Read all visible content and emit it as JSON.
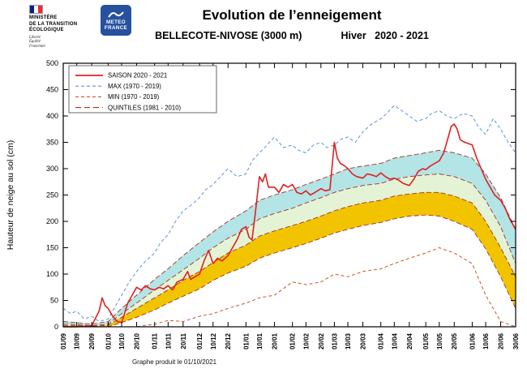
{
  "header": {
    "ministry": {
      "line1": "MINISTÈRE",
      "line2": "DE LA TRANSITION",
      "line3": "ÉCOLOGIQUE",
      "motto1": "Liberté",
      "motto2": "Égalité",
      "motto3": "Fraternité"
    },
    "meteo_france": {
      "line1": "METEO",
      "line2": "FRANCE"
    },
    "title": "Evolution de l’enneigement",
    "subtitle_station": "BELLECOTE-NIVOSE (3000 m)",
    "subtitle_season": "Hiver   2020 - 2021"
  },
  "footer": {
    "caption": "Graphe produit le 01/10/2021"
  },
  "chart_data": {
    "type": "line",
    "title": "Evolution de l’enneigement",
    "subtitle": "BELLECOTE-NIVOSE (3000 m)  Hiver 2020 - 2021",
    "ylabel": "Hauteur de neige au sol (cm)",
    "ylim": [
      0,
      500
    ],
    "ytick_step": 50,
    "grid": false,
    "legend_position": "top-left",
    "x_range_days": [
      0,
      302
    ],
    "x_tick_labels": [
      "01/09",
      "10/09",
      "20/09",
      "01/10",
      "10/10",
      "20/10",
      "01/11",
      "10/11",
      "20/11",
      "01/12",
      "10/12",
      "20/12",
      "01/01",
      "10/01",
      "20/01",
      "01/02",
      "10/02",
      "20/02",
      "01/03",
      "10/03",
      "20/03",
      "01/04",
      "10/04",
      "20/04",
      "01/05",
      "10/05",
      "20/05",
      "01/06",
      "10/06",
      "20/06",
      "30/06"
    ],
    "x_tick_days": [
      0,
      9,
      19,
      30,
      39,
      49,
      61,
      70,
      80,
      91,
      100,
      110,
      122,
      131,
      141,
      153,
      162,
      172,
      181,
      190,
      200,
      212,
      221,
      231,
      242,
      251,
      261,
      273,
      282,
      292,
      302
    ],
    "legend": [
      {
        "key": "saison",
        "label": "SAISON 2020 - 2021",
        "color": "#e02020",
        "style": "solid"
      },
      {
        "key": "max",
        "label": "MAX (1970 - 2019)",
        "color": "#5b93d6",
        "style": "dashed"
      },
      {
        "key": "min",
        "label": "MIN (1970 - 2019)",
        "color": "#cc5522",
        "style": "dashed"
      },
      {
        "key": "quintiles",
        "label": "QUINTILES (1981 - 2010)",
        "color": "#9c3726",
        "style": "longdash"
      }
    ],
    "bands": [
      {
        "name": "quintile-band-q4-q3",
        "color": "#b3e4e6",
        "upper": "q4",
        "lower": "q3"
      },
      {
        "name": "quintile-band-q3-q2",
        "color": "#e4f3d6",
        "upper": "q3",
        "lower": "q2"
      },
      {
        "name": "quintile-band-q2-q1",
        "color": "#f2c400",
        "upper": "q2",
        "lower": "q1"
      }
    ],
    "series": {
      "q4": {
        "x": [
          0,
          9,
          19,
          30,
          39,
          49,
          61,
          70,
          80,
          91,
          100,
          110,
          122,
          131,
          141,
          153,
          162,
          172,
          181,
          190,
          200,
          212,
          221,
          231,
          242,
          251,
          261,
          273,
          282,
          292,
          302
        ],
        "values": [
          10,
          8,
          5,
          10,
          35,
          60,
          90,
          110,
          135,
          160,
          180,
          200,
          220,
          240,
          250,
          260,
          270,
          280,
          290,
          300,
          305,
          310,
          320,
          325,
          330,
          335,
          330,
          320,
          290,
          245,
          185
        ]
      },
      "q3": {
        "x": [
          0,
          9,
          19,
          30,
          39,
          49,
          61,
          70,
          80,
          91,
          100,
          110,
          122,
          131,
          141,
          153,
          162,
          172,
          181,
          190,
          200,
          212,
          221,
          231,
          242,
          251,
          261,
          273,
          282,
          292,
          302
        ],
        "values": [
          5,
          4,
          2,
          5,
          25,
          45,
          70,
          88,
          108,
          130,
          150,
          168,
          185,
          205,
          215,
          225,
          235,
          245,
          255,
          262,
          268,
          272,
          280,
          285,
          288,
          290,
          285,
          272,
          240,
          190,
          120
        ]
      },
      "q2": {
        "x": [
          0,
          9,
          19,
          30,
          39,
          49,
          61,
          70,
          80,
          91,
          100,
          110,
          122,
          131,
          141,
          153,
          162,
          172,
          181,
          190,
          200,
          212,
          221,
          231,
          242,
          251,
          261,
          273,
          282,
          292,
          302
        ],
        "values": [
          2,
          2,
          1,
          3,
          18,
          35,
          55,
          70,
          88,
          105,
          122,
          140,
          155,
          172,
          182,
          192,
          200,
          210,
          220,
          228,
          235,
          240,
          248,
          252,
          255,
          255,
          248,
          235,
          200,
          150,
          95
        ]
      },
      "q1": {
        "x": [
          0,
          9,
          19,
          30,
          39,
          49,
          61,
          70,
          80,
          91,
          100,
          110,
          122,
          131,
          141,
          153,
          162,
          172,
          181,
          190,
          200,
          212,
          221,
          231,
          242,
          251,
          261,
          273,
          282,
          292,
          302
        ],
        "values": [
          0,
          0,
          0,
          0,
          8,
          18,
          32,
          45,
          58,
          72,
          88,
          102,
          115,
          130,
          140,
          150,
          158,
          168,
          178,
          185,
          192,
          198,
          205,
          210,
          212,
          210,
          200,
          185,
          148,
          95,
          35
        ]
      },
      "min": {
        "x": [
          0,
          9,
          19,
          30,
          39,
          49,
          61,
          70,
          80,
          91,
          100,
          110,
          122,
          131,
          141,
          153,
          162,
          172,
          181,
          190,
          200,
          212,
          221,
          231,
          242,
          251,
          261,
          273,
          282,
          292,
          302
        ],
        "values": [
          0,
          0,
          0,
          0,
          0,
          0,
          5,
          12,
          10,
          20,
          25,
          35,
          45,
          55,
          60,
          85,
          80,
          85,
          100,
          95,
          105,
          110,
          120,
          130,
          140,
          150,
          140,
          120,
          60,
          10,
          0
        ]
      },
      "max": {
        "x": [
          0,
          5,
          9,
          14,
          19,
          24,
          30,
          35,
          39,
          44,
          49,
          55,
          61,
          65,
          70,
          75,
          80,
          85,
          91,
          95,
          100,
          105,
          110,
          116,
          122,
          126,
          131,
          136,
          141,
          147,
          153,
          157,
          162,
          167,
          172,
          176,
          181,
          185,
          190,
          195,
          200,
          206,
          212,
          216,
          221,
          226,
          231,
          236,
          242,
          246,
          251,
          256,
          261,
          267,
          273,
          277,
          282,
          287,
          292,
          297,
          302
        ],
        "values": [
          35,
          25,
          30,
          15,
          20,
          10,
          15,
          40,
          60,
          85,
          105,
          125,
          140,
          160,
          175,
          200,
          220,
          230,
          245,
          260,
          270,
          285,
          300,
          285,
          290,
          315,
          330,
          345,
          360,
          340,
          345,
          335,
          330,
          345,
          350,
          340,
          345,
          355,
          360,
          350,
          370,
          385,
          395,
          405,
          420,
          410,
          400,
          390,
          395,
          405,
          410,
          400,
          395,
          405,
          400,
          380,
          365,
          395,
          375,
          350,
          330
        ]
      },
      "saison": {
        "x": [
          0,
          9,
          19,
          24,
          26,
          28,
          30,
          33,
          36,
          39,
          43,
          46,
          49,
          52,
          55,
          58,
          61,
          64,
          67,
          70,
          73,
          76,
          80,
          83,
          85,
          88,
          91,
          94,
          97,
          100,
          103,
          106,
          110,
          113,
          116,
          119,
          122,
          124,
          126,
          128,
          131,
          133,
          135,
          137,
          141,
          144,
          147,
          150,
          153,
          156,
          159,
          162,
          165,
          168,
          172,
          175,
          178,
          181,
          183,
          185,
          188,
          190,
          193,
          196,
          200,
          203,
          206,
          209,
          212,
          215,
          218,
          221,
          224,
          227,
          231,
          234,
          237,
          240,
          242,
          245,
          248,
          251,
          254,
          257,
          259,
          261,
          263,
          265,
          268,
          273,
          276,
          279,
          282,
          285,
          288,
          292,
          295,
          298,
          302
        ],
        "values": [
          0,
          0,
          2,
          30,
          55,
          40,
          35,
          20,
          10,
          8,
          45,
          60,
          75,
          70,
          78,
          72,
          70,
          75,
          72,
          78,
          70,
          85,
          90,
          105,
          90,
          95,
          100,
          125,
          145,
          120,
          130,
          125,
          135,
          150,
          165,
          185,
          190,
          170,
          165,
          210,
          285,
          275,
          290,
          265,
          265,
          255,
          270,
          265,
          270,
          255,
          252,
          258,
          250,
          255,
          262,
          258,
          260,
          350,
          320,
          310,
          305,
          300,
          290,
          285,
          282,
          290,
          288,
          285,
          292,
          285,
          280,
          282,
          278,
          272,
          268,
          280,
          295,
          300,
          298,
          305,
          310,
          315,
          330,
          360,
          380,
          385,
          375,
          355,
          350,
          345,
          320,
          300,
          280,
          265,
          250,
          240,
          225,
          205,
          185
        ]
      }
    }
  }
}
